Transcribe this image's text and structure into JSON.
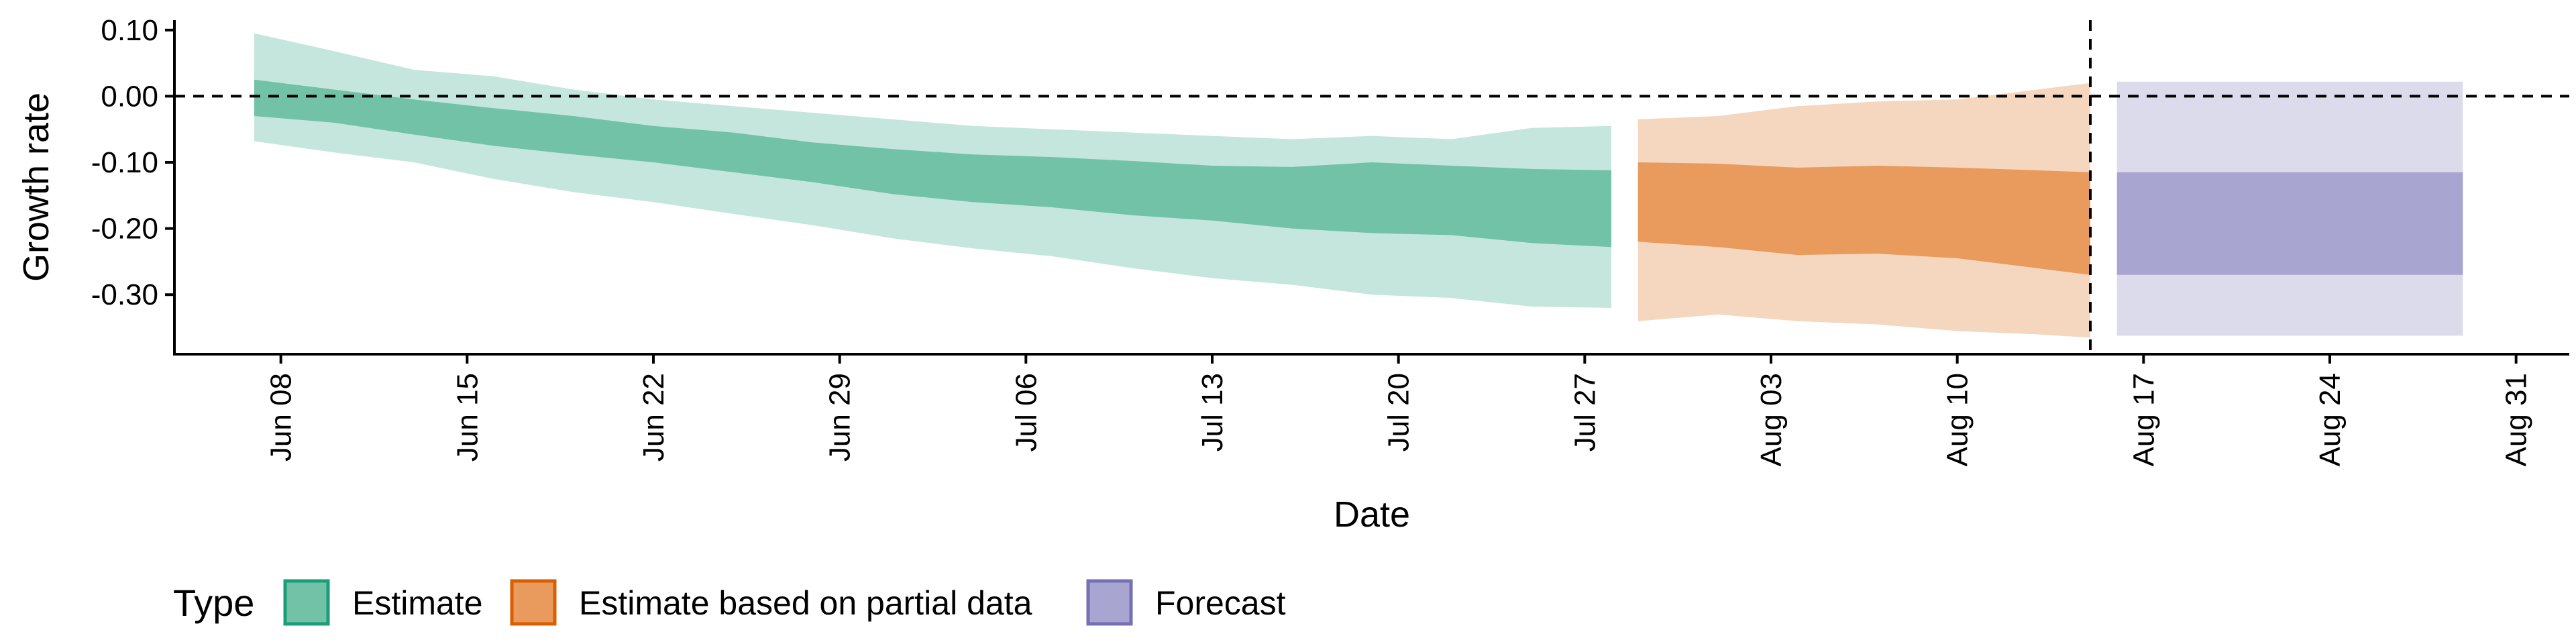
{
  "chart_data": {
    "type": "area",
    "xlabel": "Date",
    "ylabel": "Growth rate",
    "x_range": [
      "2020-06-04",
      "2020-09-02"
    ],
    "ylim": [
      -0.39,
      0.115
    ],
    "y_ticks": [
      0.1,
      0.0,
      -0.1,
      -0.2,
      -0.3
    ],
    "y_tick_labels": [
      "0.10",
      "0.00",
      "-0.10",
      "-0.20",
      "-0.30"
    ],
    "x_ticks": [
      "2020-06-08",
      "2020-06-15",
      "2020-06-22",
      "2020-06-29",
      "2020-07-06",
      "2020-07-13",
      "2020-07-20",
      "2020-07-27",
      "2020-08-03",
      "2020-08-10",
      "2020-08-17",
      "2020-08-24",
      "2020-08-31"
    ],
    "x_tick_labels": [
      "Jun 08",
      "Jun 15",
      "Jun 22",
      "Jun 29",
      "Jul 06",
      "Jul 13",
      "Jul 20",
      "Jul 27",
      "Aug 03",
      "Aug 10",
      "Aug 17",
      "Aug 24",
      "Aug 31"
    ],
    "reference_lines": [
      {
        "orientation": "horizontal",
        "y": 0.0,
        "style": "dashed"
      },
      {
        "orientation": "vertical",
        "x": "2020-08-15",
        "style": "dashed"
      }
    ],
    "grid": false,
    "legend": {
      "title": "Type",
      "position": "bottom-left",
      "entries": [
        {
          "label": "Estimate",
          "color": "#1b9e77"
        },
        {
          "label": "Estimate based on partial data",
          "color": "#d95f02"
        },
        {
          "label": "Forecast",
          "color": "#7570b3"
        }
      ]
    },
    "series": [
      {
        "name": "Estimate",
        "color": "#1b9e77",
        "inner_color": "#72c2a7",
        "outer_color": "#c5e6dc",
        "x": [
          "2020-06-07",
          "2020-06-10",
          "2020-06-13",
          "2020-06-16",
          "2020-06-19",
          "2020-06-22",
          "2020-06-25",
          "2020-06-28",
          "2020-07-01",
          "2020-07-04",
          "2020-07-07",
          "2020-07-10",
          "2020-07-13",
          "2020-07-16",
          "2020-07-19",
          "2020-07-22",
          "2020-07-25",
          "2020-07-28"
        ],
        "outer_upper": [
          0.095,
          0.068,
          0.04,
          0.03,
          0.01,
          -0.005,
          -0.015,
          -0.025,
          -0.035,
          -0.045,
          -0.05,
          -0.055,
          -0.06,
          -0.065,
          -0.06,
          -0.065,
          -0.048,
          -0.045
        ],
        "inner_upper": [
          0.025,
          0.01,
          -0.005,
          -0.018,
          -0.03,
          -0.045,
          -0.055,
          -0.07,
          -0.08,
          -0.088,
          -0.092,
          -0.098,
          -0.105,
          -0.107,
          -0.1,
          -0.105,
          -0.11,
          -0.112
        ],
        "inner_lower": [
          -0.03,
          -0.04,
          -0.058,
          -0.075,
          -0.088,
          -0.1,
          -0.115,
          -0.13,
          -0.148,
          -0.16,
          -0.168,
          -0.18,
          -0.188,
          -0.2,
          -0.207,
          -0.21,
          -0.222,
          -0.228
        ],
        "outer_lower": [
          -0.068,
          -0.085,
          -0.1,
          -0.125,
          -0.145,
          -0.16,
          -0.178,
          -0.195,
          -0.215,
          -0.23,
          -0.242,
          -0.26,
          -0.275,
          -0.285,
          -0.3,
          -0.305,
          -0.318,
          -0.32
        ]
      },
      {
        "name": "Estimate based on partial data",
        "color": "#d95f02",
        "inner_color": "#e89b5d",
        "outer_color": "#f5d6be",
        "x": [
          "2020-07-29",
          "2020-08-01",
          "2020-08-04",
          "2020-08-07",
          "2020-08-10",
          "2020-08-13",
          "2020-08-15"
        ],
        "outer_upper": [
          -0.035,
          -0.03,
          -0.015,
          -0.008,
          -0.005,
          0.01,
          0.02
        ],
        "inner_upper": [
          -0.1,
          -0.102,
          -0.108,
          -0.105,
          -0.108,
          -0.112,
          -0.115
        ],
        "inner_lower": [
          -0.22,
          -0.228,
          -0.24,
          -0.238,
          -0.245,
          -0.26,
          -0.27
        ],
        "outer_lower": [
          -0.34,
          -0.33,
          -0.34,
          -0.345,
          -0.355,
          -0.36,
          -0.365
        ]
      },
      {
        "name": "Forecast",
        "color": "#7570b3",
        "inner_color": "#a9a5d1",
        "outer_color": "#dcdbeb",
        "x": [
          "2020-08-16",
          "2020-08-29"
        ],
        "outer_upper": [
          0.022,
          0.022
        ],
        "inner_upper": [
          -0.115,
          -0.115
        ],
        "inner_lower": [
          -0.27,
          -0.27
        ],
        "outer_lower": [
          -0.362,
          -0.362
        ]
      }
    ]
  }
}
